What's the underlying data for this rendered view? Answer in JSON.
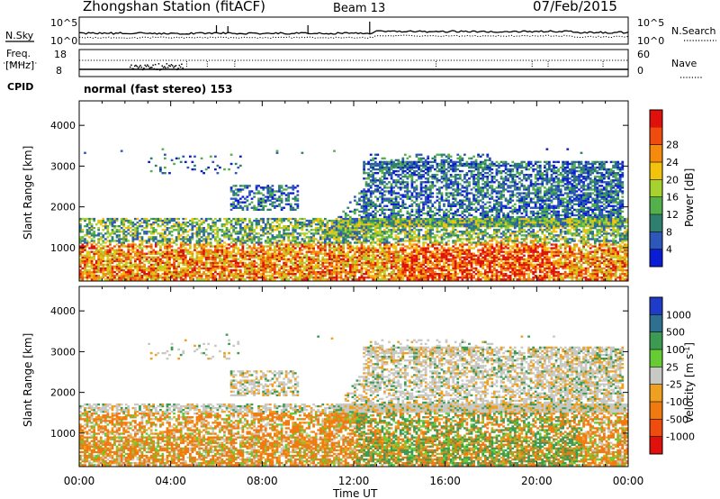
{
  "header": {
    "station": "Zhongshan Station (fitACF)",
    "beam": "Beam 13",
    "date": "07/Feb/2015"
  },
  "summary_panels": {
    "nsky_label": "N.Sky",
    "nsearch_label": "N.Search",
    "nsky_tick_top": "10^5",
    "nsky_tick_bottom": "10^0",
    "freq_label_line1": "Freq.",
    "freq_label_line2": "[MHz]",
    "freq_tick_top": "18",
    "freq_tick_bottom": "8",
    "nave_label": "Nave",
    "nave_tick_top": "60",
    "nave_tick_bottom": "0",
    "cpid_label": "CPID",
    "cpid_value": "normal (fast stereo) 153"
  },
  "chart_data": [
    {
      "type": "heatmap",
      "parameter": "power",
      "ylabel": "Slant Range [km]",
      "xlabel": "",
      "yticks": [
        1000,
        2000,
        3000,
        4000
      ],
      "ylim": [
        180,
        4600
      ],
      "xticks": [
        "00:00",
        "04:00",
        "08:00",
        "12:00",
        "16:00",
        "20:00",
        "00:00"
      ],
      "xlim_hours": [
        0,
        24
      ],
      "colorbar": {
        "label": "Power [dB]",
        "ticks": [
          "4",
          "8",
          "12",
          "16",
          "20",
          "24",
          "28"
        ],
        "colors": [
          "#0a1cd6",
          "#2d57b8",
          "#2f7f6f",
          "#54b04a",
          "#a6d12e",
          "#f2c20c",
          "#f58a0c",
          "#f04c10",
          "#e0100c"
        ]
      }
    },
    {
      "type": "heatmap",
      "parameter": "velocity",
      "ylabel": "Slant Range [km]",
      "xlabel": "Time UT",
      "yticks": [
        1000,
        2000,
        3000,
        4000
      ],
      "ylim": [
        180,
        4600
      ],
      "xticks": [
        "00:00",
        "04:00",
        "08:00",
        "12:00",
        "16:00",
        "20:00",
        "00:00"
      ],
      "xlim_hours": [
        0,
        24
      ],
      "colorbar": {
        "label": "Velocity [m s^-1]",
        "ticks": [
          "1000",
          "500",
          "100",
          "25",
          "-25",
          "-100",
          "-500",
          "-1000"
        ],
        "colors": [
          "#1f3cc8",
          "#2f6f8f",
          "#3d9a52",
          "#66cc33",
          "#c8c8c4",
          "#f0a020",
          "#f07a10",
          "#f04c10",
          "#e0100c"
        ]
      }
    }
  ]
}
